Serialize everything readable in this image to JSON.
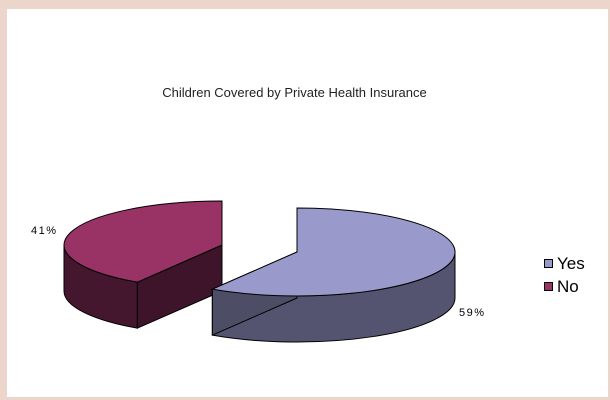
{
  "chart_data": {
    "type": "pie",
    "title": "Children Covered by Private Health Insurance",
    "categories": [
      "Yes",
      "No"
    ],
    "values": [
      59,
      41
    ],
    "data_labels": [
      "59%",
      "41%"
    ],
    "colors": [
      "#9999cc",
      "#993366"
    ],
    "style": "3d-exploded",
    "legend": "right"
  }
}
